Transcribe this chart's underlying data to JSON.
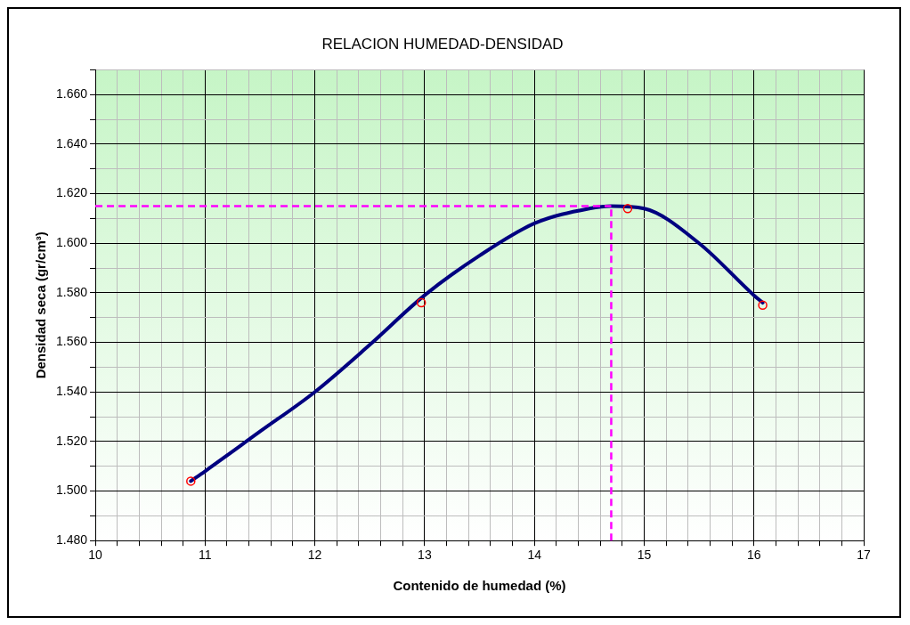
{
  "chart_data": {
    "type": "scatter",
    "title": "RELACION HUMEDAD-DENSIDAD",
    "xlabel": "Contenido de humedad (%)",
    "ylabel": "Densidad seca (gr/cm³)",
    "series": [
      {
        "type": "line",
        "color": "#000080",
        "marker": "none",
        "line_style": "solid",
        "x": [
          10.87,
          11,
          11.5,
          12,
          12.5,
          13,
          13.5,
          14,
          14.5,
          14.7,
          15,
          15.5,
          16,
          16.08
        ],
        "values": [
          1.504,
          1.508,
          1.524,
          1.54,
          1.559,
          1.579,
          1.595,
          1.608,
          1.614,
          1.615,
          1.614,
          1.6,
          1.579,
          1.576
        ]
      },
      {
        "color": "#ff0000",
        "marker": "circle",
        "x": [
          10.87,
          12.97,
          14.85,
          16.08
        ],
        "values": [
          1.504,
          1.576,
          1.614,
          1.575
        ]
      }
    ],
    "xlim": [
      10,
      17
    ],
    "ylim": [
      1.48,
      1.67
    ],
    "xticks": [
      10,
      {
        "value": 10.2,
        "label": null
      },
      {
        "value": 10.4,
        "label": null
      },
      {
        "value": 10.6,
        "label": null
      },
      {
        "value": 10.8,
        "label": null
      },
      11,
      {
        "value": 11.2,
        "label": null
      },
      {
        "value": 11.4,
        "label": null
      },
      {
        "value": 11.6,
        "label": null
      },
      {
        "value": 11.8,
        "label": null
      },
      12,
      {
        "value": 12.2,
        "label": null
      },
      {
        "value": 12.4,
        "label": null
      },
      {
        "value": 12.6,
        "label": null
      },
      {
        "value": 12.8,
        "label": null
      },
      13,
      {
        "value": 13.2,
        "label": null
      },
      {
        "value": 13.4,
        "label": null
      },
      {
        "value": 13.6,
        "label": null
      },
      {
        "value": 13.8,
        "label": null
      },
      14,
      {
        "value": 14.2,
        "label": null
      },
      {
        "value": 14.4,
        "label": null
      },
      {
        "value": 14.6,
        "label": null
      },
      {
        "value": 14.8,
        "label": null
      },
      15,
      {
        "value": 15.2,
        "label": null
      },
      {
        "value": 15.4,
        "label": null
      },
      {
        "value": 15.6,
        "label": null
      },
      {
        "value": 15.8,
        "label": null
      },
      16,
      {
        "value": 16.2,
        "label": null
      },
      {
        "value": 16.4,
        "label": null
      },
      {
        "value": 16.6,
        "label": null
      },
      {
        "value": 16.8,
        "label": null
      },
      17
    ],
    "yticks": [
      {
        "value": 1.48,
        "label": "1.480"
      },
      {
        "value": 1.49,
        "label": null
      },
      {
        "value": 1.5,
        "label": "1.500"
      },
      {
        "value": 1.51,
        "label": null
      },
      {
        "value": 1.52,
        "label": "1.520"
      },
      {
        "value": 1.53,
        "label": null
      },
      {
        "value": 1.54,
        "label": "1.540"
      },
      {
        "value": 1.55,
        "label": null
      },
      {
        "value": 1.56,
        "label": "1.560"
      },
      {
        "value": 1.57,
        "label": null
      },
      {
        "value": 1.58,
        "label": "1.580"
      },
      {
        "value": 1.59,
        "label": null
      },
      {
        "value": 1.6,
        "label": "1.600"
      },
      {
        "value": 1.61,
        "label": null
      },
      {
        "value": 1.62,
        "label": "1.620"
      },
      {
        "value": 1.63,
        "label": null
      },
      {
        "value": 1.64,
        "label": "1.640"
      },
      {
        "value": 1.65,
        "label": null
      },
      {
        "value": 1.66,
        "label": "1.660"
      },
      {
        "value": 1.67,
        "label": null
      }
    ],
    "ref_lines": [
      {
        "axis": "y",
        "value": 1.615,
        "color": "#ff00ff",
        "line_style": "dashed"
      },
      {
        "axis": "x",
        "value": 14.7,
        "color": "#ff00ff",
        "line_style": "dashed"
      }
    ],
    "grid": true,
    "legend": false
  }
}
